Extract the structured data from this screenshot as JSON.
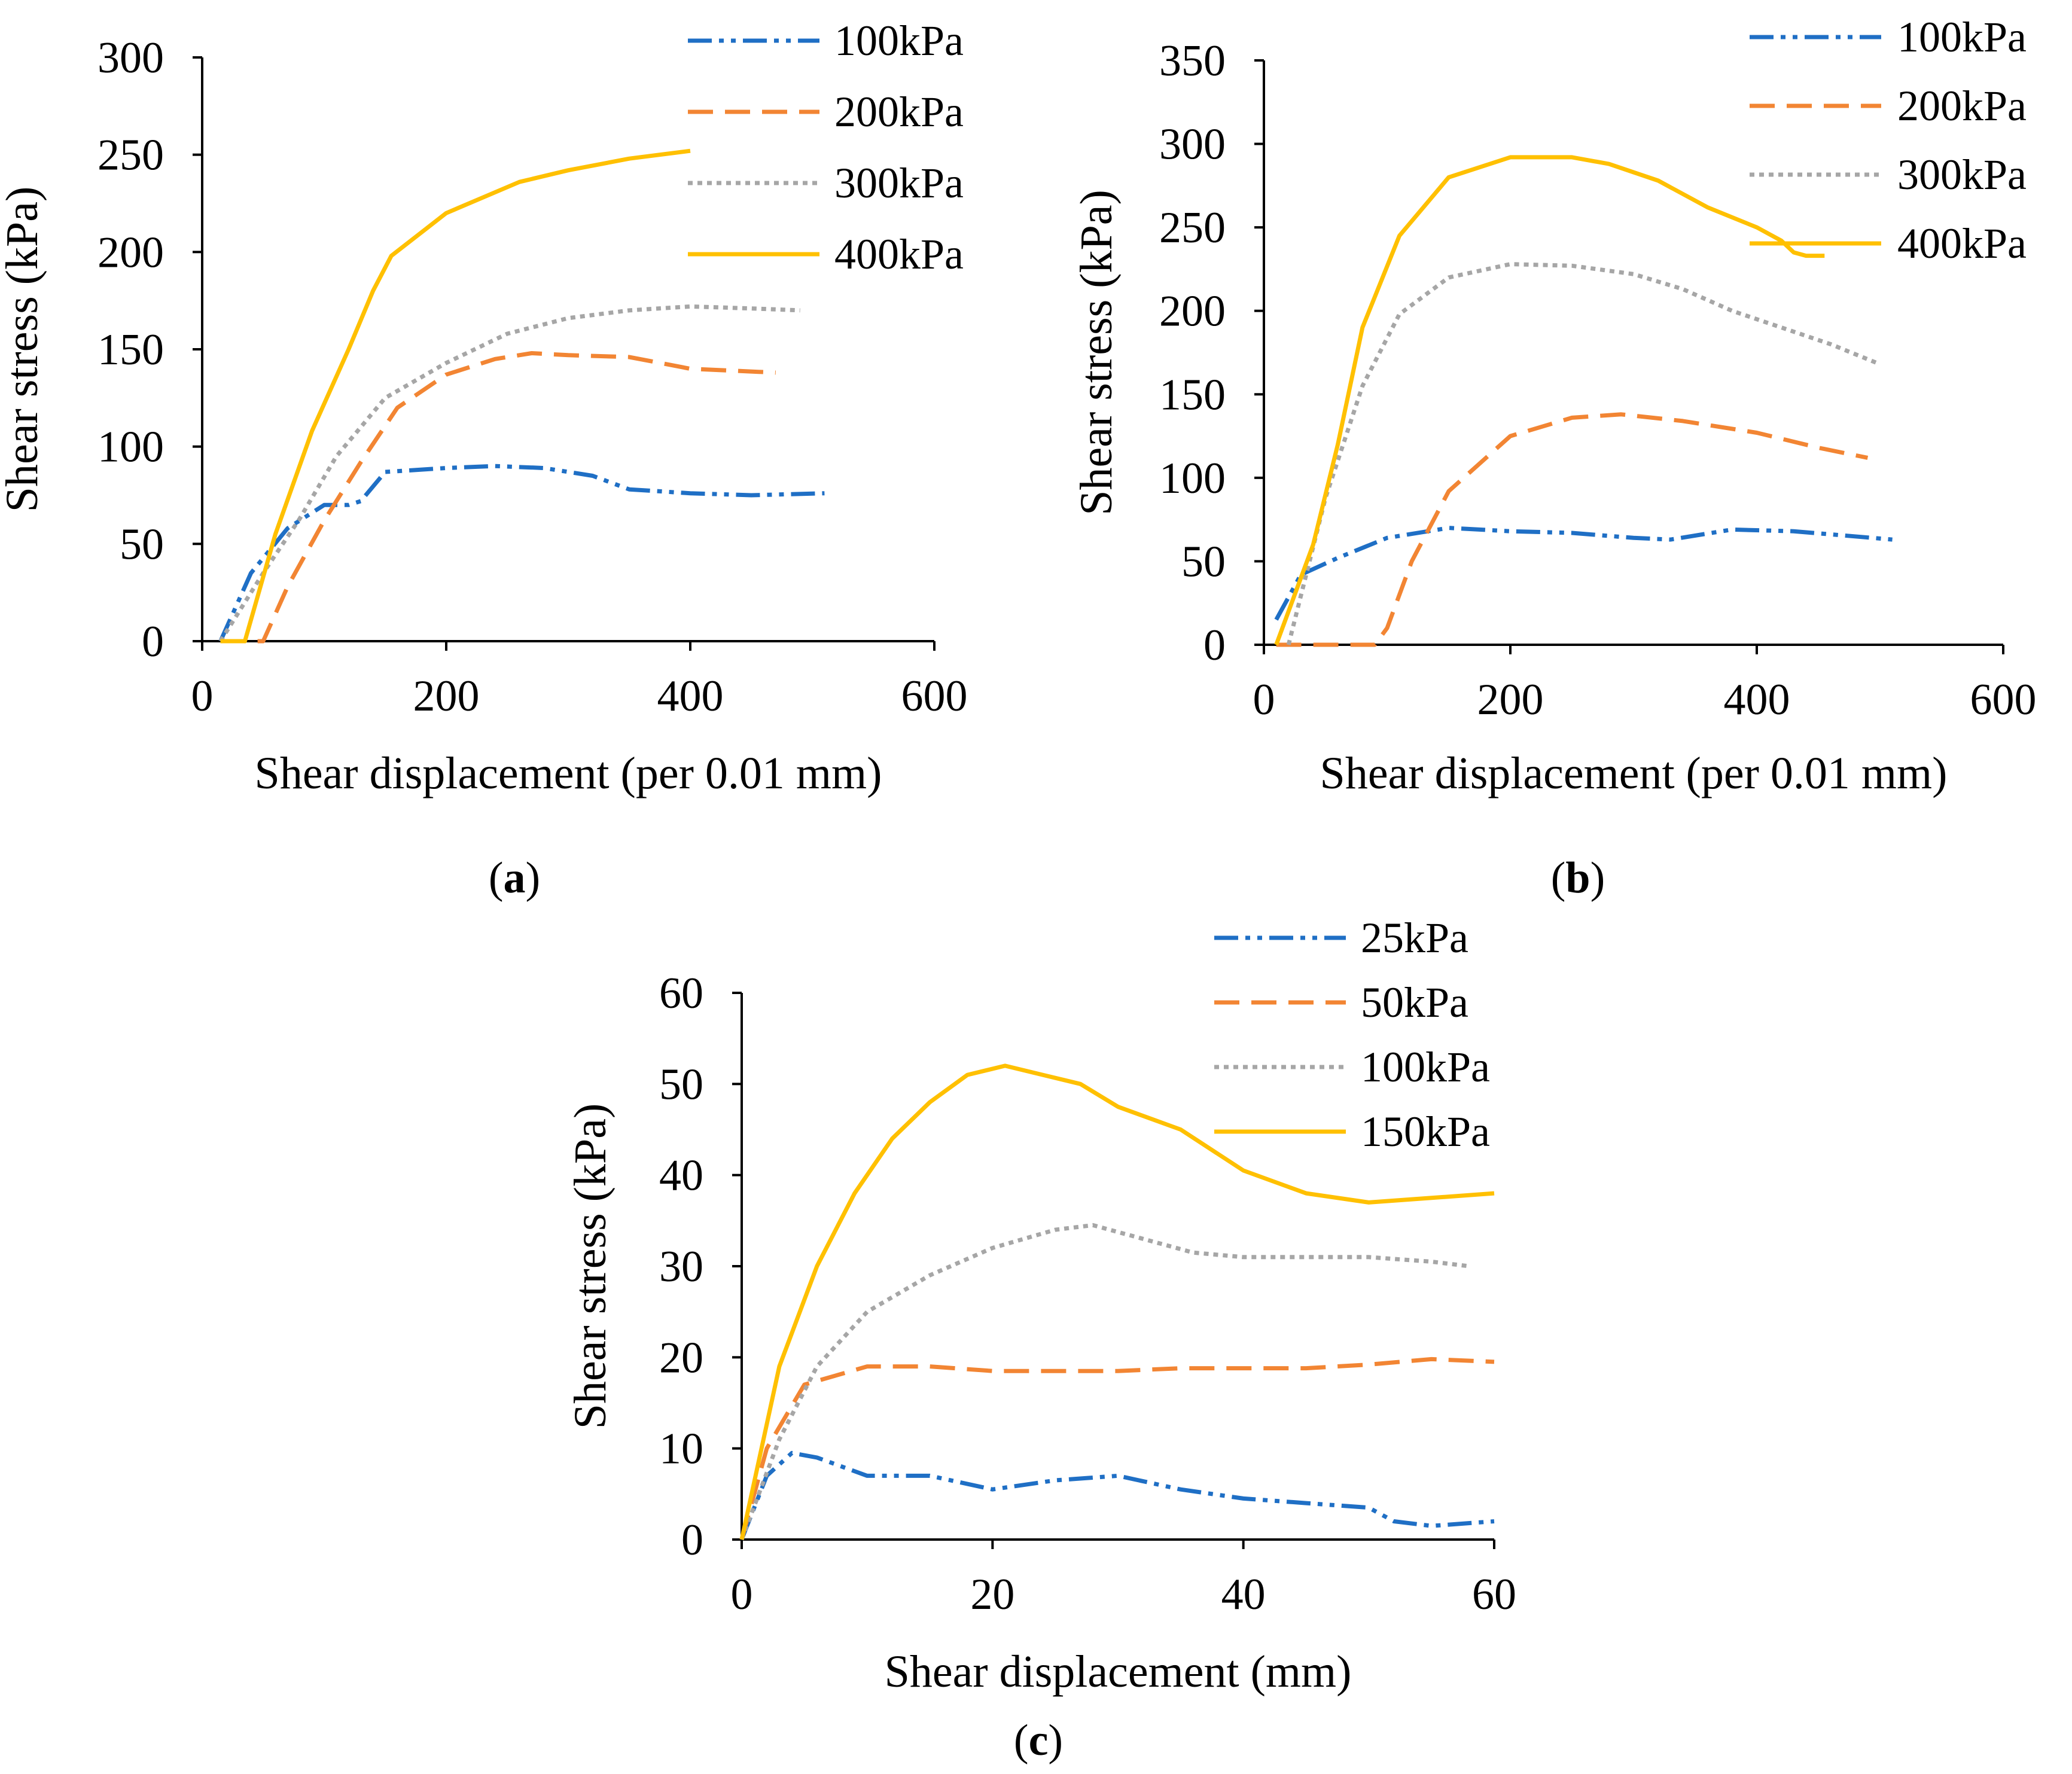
{
  "chart_data": [
    {
      "id": "a",
      "panel_label": "a",
      "type": "line",
      "xlabel": "Shear displacement (per 0.01 mm)",
      "ylabel": "Shear stress (kPa)",
      "xlim": [
        0,
        600
      ],
      "ylim": [
        0,
        300
      ],
      "xticks": [
        0,
        200,
        400,
        600
      ],
      "yticks": [
        0,
        50,
        100,
        150,
        200,
        250,
        300
      ],
      "grid": false,
      "legend_position": "top-right",
      "series": [
        {
          "name": "100kPa",
          "color": "#1f6fc5",
          "style": "dash-dot-dot",
          "x": [
            15,
            40,
            70,
            100,
            120,
            130,
            150,
            200,
            240,
            280,
            320,
            350,
            400,
            450,
            510
          ],
          "y": [
            0,
            35,
            58,
            70,
            70,
            72,
            87,
            89,
            90,
            89,
            85,
            78,
            76,
            75,
            76
          ]
        },
        {
          "name": "200kPa",
          "color": "#f28533",
          "style": "dashed",
          "x": [
            15,
            50,
            70,
            100,
            130,
            160,
            200,
            240,
            270,
            300,
            350,
            400,
            470
          ],
          "y": [
            0,
            0,
            28,
            62,
            92,
            120,
            137,
            145,
            148,
            147,
            146,
            140,
            138
          ]
        },
        {
          "name": "300kPa",
          "color": "#a6a6a6",
          "style": "dotted",
          "x": [
            15,
            50,
            80,
            110,
            150,
            200,
            250,
            300,
            350,
            400,
            450,
            490
          ],
          "y": [
            0,
            35,
            63,
            95,
            125,
            143,
            158,
            166,
            170,
            172,
            171,
            170
          ]
        },
        {
          "name": "400kPa",
          "color": "#ffc000",
          "style": "solid",
          "x": [
            15,
            35,
            60,
            90,
            120,
            140,
            155,
            200,
            260,
            300,
            350,
            400
          ],
          "y": [
            0,
            0,
            55,
            108,
            150,
            180,
            198,
            220,
            236,
            242,
            248,
            252
          ]
        }
      ]
    },
    {
      "id": "b",
      "panel_label": "b",
      "type": "line",
      "xlabel": "Shear displacement (per 0.01 mm)",
      "ylabel": "Shear stress (kPa)",
      "xlim": [
        0,
        600
      ],
      "ylim": [
        0,
        350
      ],
      "xticks": [
        0,
        200,
        400,
        600
      ],
      "yticks": [
        0,
        50,
        100,
        150,
        200,
        250,
        300,
        350
      ],
      "grid": false,
      "legend_position": "top-right",
      "series": [
        {
          "name": "100kPa",
          "color": "#1f6fc5",
          "style": "dash-dot-dot",
          "x": [
            10,
            30,
            60,
            100,
            150,
            200,
            250,
            300,
            330,
            380,
            430,
            510
          ],
          "y": [
            15,
            42,
            52,
            64,
            70,
            68,
            67,
            64,
            63,
            69,
            68,
            63
          ]
        },
        {
          "name": "200kPa",
          "color": "#f28533",
          "style": "dashed",
          "x": [
            10,
            90,
            100,
            120,
            150,
            200,
            250,
            290,
            340,
            400,
            450,
            490
          ],
          "y": [
            0,
            0,
            10,
            50,
            92,
            125,
            136,
            138,
            134,
            127,
            118,
            112
          ]
        },
        {
          "name": "300kPa",
          "color": "#a6a6a6",
          "style": "dotted",
          "x": [
            20,
            50,
            80,
            110,
            150,
            200,
            250,
            300,
            340,
            380,
            420,
            460,
            500
          ],
          "y": [
            0,
            88,
            155,
            198,
            220,
            228,
            227,
            222,
            213,
            200,
            190,
            180,
            168
          ]
        },
        {
          "name": "400kPa",
          "color": "#ffc000",
          "style": "solid",
          "x": [
            10,
            40,
            60,
            80,
            110,
            150,
            200,
            250,
            280,
            320,
            360,
            400,
            420,
            430,
            440,
            455
          ],
          "y": [
            0,
            60,
            120,
            190,
            245,
            280,
            292,
            292,
            288,
            278,
            262,
            250,
            242,
            235,
            233,
            233
          ]
        }
      ]
    },
    {
      "id": "c",
      "panel_label": "c",
      "type": "line",
      "xlabel": "Shear displacement (mm)",
      "ylabel": "Shear stress (kPa)",
      "xlim": [
        0,
        60
      ],
      "ylim": [
        0,
        60
      ],
      "xticks": [
        0,
        20,
        40,
        60
      ],
      "yticks": [
        0,
        10,
        20,
        30,
        40,
        50,
        60
      ],
      "grid": false,
      "legend_position": "top-right",
      "series": [
        {
          "name": "25kPa",
          "color": "#1f6fc5",
          "style": "dash-dot-dot",
          "x": [
            0,
            2,
            4,
            6,
            10,
            15,
            20,
            25,
            30,
            35,
            40,
            45,
            50,
            52,
            55,
            60
          ],
          "y": [
            0,
            7,
            9.5,
            9,
            7,
            7,
            5.5,
            6.5,
            7,
            5.5,
            4.5,
            4,
            3.5,
            2,
            1.5,
            2
          ]
        },
        {
          "name": "50kPa",
          "color": "#f28533",
          "style": "dashed",
          "x": [
            0,
            2,
            5,
            10,
            15,
            20,
            25,
            30,
            35,
            40,
            45,
            50,
            55,
            60
          ],
          "y": [
            0,
            10,
            17,
            19,
            19,
            18.5,
            18.5,
            18.5,
            18.8,
            18.8,
            18.8,
            19.2,
            19.8,
            19.5
          ]
        },
        {
          "name": "100kPa",
          "color": "#a6a6a6",
          "style": "dotted",
          "x": [
            0,
            3,
            6,
            10,
            15,
            20,
            25,
            28,
            32,
            36,
            40,
            45,
            50,
            55,
            58
          ],
          "y": [
            0,
            11,
            19,
            25,
            29,
            32,
            34,
            34.5,
            33,
            31.5,
            31,
            31,
            31,
            30.5,
            30
          ]
        },
        {
          "name": "150kPa",
          "color": "#ffc000",
          "style": "solid",
          "x": [
            0,
            3,
            6,
            9,
            12,
            15,
            18,
            21,
            24,
            27,
            30,
            35,
            40,
            45,
            50,
            55,
            60
          ],
          "y": [
            0,
            19,
            30,
            38,
            44,
            48,
            51,
            52,
            51,
            50,
            47.5,
            45,
            40.5,
            38,
            37,
            37.5,
            38
          ]
        }
      ]
    }
  ]
}
